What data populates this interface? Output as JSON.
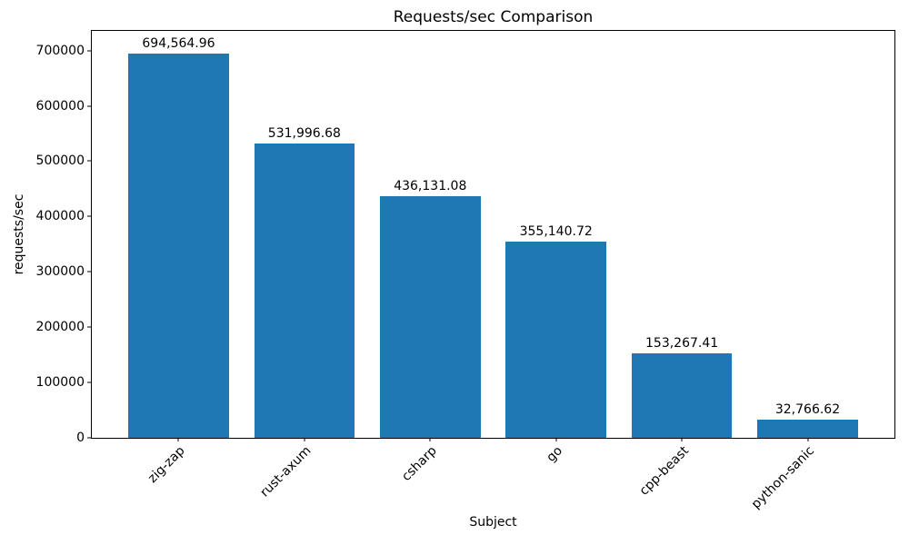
{
  "chart_data": {
    "type": "bar",
    "title": "Requests/sec Comparison",
    "xlabel": "Subject",
    "ylabel": "requests/sec",
    "categories": [
      "zig-zap",
      "rust-axum",
      "csharp",
      "go",
      "cpp-beast",
      "python-sanic"
    ],
    "values": [
      694564.96,
      531996.68,
      436131.08,
      355140.72,
      153267.41,
      32766.62
    ],
    "value_labels": [
      "694,564.96",
      "531,996.68",
      "436,131.08",
      "355,140.72",
      "153,267.41",
      "32,766.62"
    ],
    "yticks": [
      0,
      100000,
      200000,
      300000,
      400000,
      500000,
      600000,
      700000
    ],
    "ytick_labels": [
      "0",
      "100000",
      "200000",
      "300000",
      "400000",
      "500000",
      "600000",
      "700000"
    ],
    "ylim": [
      0,
      735400
    ],
    "bar_color": "#1f77b4",
    "grid": false,
    "x_tick_rotation_deg": 45
  }
}
